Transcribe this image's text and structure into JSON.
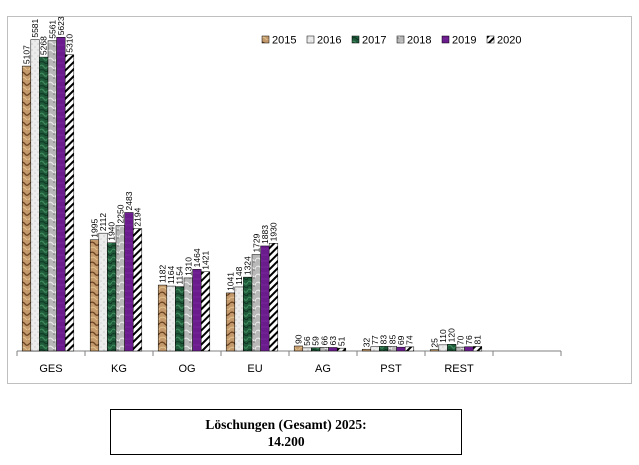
{
  "chart_data": {
    "type": "bar",
    "categories": [
      "GES",
      "KG",
      "OG",
      "EU",
      "AG",
      "PST",
      "REST"
    ],
    "series": [
      {
        "name": "2015",
        "values": [
          5107,
          1995,
          1182,
          1041,
          90,
          32,
          25
        ]
      },
      {
        "name": "2016",
        "values": [
          5581,
          2112,
          1164,
          1148,
          56,
          77,
          110
        ]
      },
      {
        "name": "2017",
        "values": [
          5268,
          1940,
          1154,
          1324,
          59,
          83,
          120
        ]
      },
      {
        "name": "2018",
        "values": [
          5561,
          2250,
          1310,
          1729,
          66,
          85,
          70
        ]
      },
      {
        "name": "2019",
        "values": [
          5623,
          2483,
          1464,
          1883,
          63,
          69,
          76
        ]
      },
      {
        "name": "2020",
        "values": [
          5310,
          2194,
          1421,
          1930,
          51,
          74,
          81
        ]
      }
    ],
    "ylim": [
      0,
      5700
    ],
    "grid": false,
    "legend_position": "top-right",
    "colors": [
      "#c49a6c",
      "#e4e4e4",
      "#1f5a3a",
      "#b8b8b8",
      "#6a1b8c",
      "#ffffff"
    ]
  },
  "summary": {
    "line1": "Löschungen (Gesamt) 2025:",
    "line2": "14.200"
  }
}
